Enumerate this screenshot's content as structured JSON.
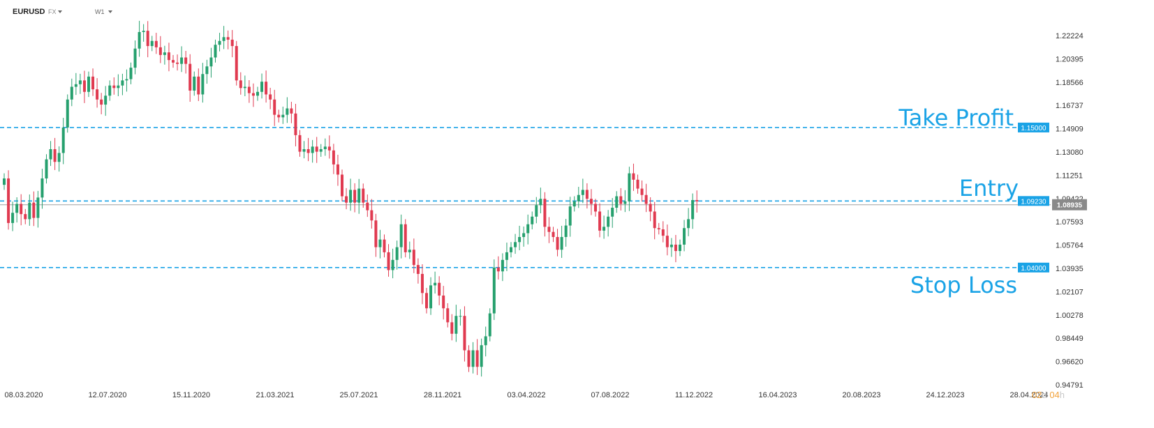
{
  "toolbar": {
    "symbol": "EURUSD",
    "market": "FX",
    "timeframe": "W1"
  },
  "countdown": {
    "days_value": "02",
    "days_unit": "d",
    "hours_value": "04",
    "hours_unit": "h"
  },
  "price_axis": {
    "labels": [
      "1.22224",
      "1.20395",
      "1.18566",
      "1.16737",
      "1.14909",
      "1.13080",
      "1.11251",
      "1.09422",
      "1.07593",
      "1.05764",
      "1.03935",
      "1.02107",
      "1.00278",
      "0.98449",
      "0.96620",
      "0.94791"
    ]
  },
  "time_axis": {
    "labels": [
      "08.03.2020",
      "12.07.2020",
      "15.11.2020",
      "21.03.2021",
      "25.07.2021",
      "28.11.2021",
      "03.04.2022",
      "07.08.2022",
      "11.12.2022",
      "16.04.2023",
      "20.08.2023",
      "24.12.2023",
      "28.04.2024"
    ]
  },
  "levels": [
    {
      "name": "Take Profit",
      "value": 1.15,
      "badge": "1.15000"
    },
    {
      "name": "Entry",
      "value": 1.0923,
      "badge": "1.09230"
    },
    {
      "name": "Stop Loss",
      "value": 1.04,
      "badge": "1.04000"
    }
  ],
  "current_price": {
    "value": 1.08935,
    "label": "1.08935"
  },
  "colors": {
    "bull": "#26a06e",
    "bear": "#e03a50",
    "level": "#1aa3e6",
    "current": "#9a9a9a"
  },
  "chart_data": {
    "type": "candlestick",
    "symbol": "EURUSD",
    "timeframe": "W1",
    "y_ticks": [
      1.22224,
      1.20395,
      1.18566,
      1.16737,
      1.14909,
      1.1308,
      1.11251,
      1.09422,
      1.07593,
      1.05764,
      1.03935,
      1.02107,
      1.00278,
      0.98449,
      0.9662,
      0.94791
    ],
    "x_tick_labels": [
      "08.03.2020",
      "12.07.2020",
      "15.11.2020",
      "21.03.2021",
      "25.07.2021",
      "28.11.2021",
      "03.04.2022",
      "07.08.2022",
      "11.12.2022",
      "16.04.2023",
      "20.08.2023",
      "24.12.2023",
      "28.04.2024"
    ],
    "horizontal_lines": [
      {
        "label": "Take Profit",
        "value": 1.15
      },
      {
        "label": "Entry",
        "value": 1.0923
      },
      {
        "label": "Stop Loss",
        "value": 1.04
      }
    ],
    "last_price": 1.08935,
    "closes": [
      1.11,
      1.075,
      1.083,
      1.09,
      1.082,
      1.078,
      1.091,
      1.079,
      1.095,
      1.11,
      1.125,
      1.133,
      1.123,
      1.13,
      1.15,
      1.172,
      1.182,
      1.184,
      1.187,
      1.178,
      1.19,
      1.18,
      1.172,
      1.168,
      1.175,
      1.183,
      1.181,
      1.183,
      1.187,
      1.188,
      1.197,
      1.212,
      1.225,
      1.226,
      1.214,
      1.218,
      1.213,
      1.207,
      1.209,
      1.203,
      1.201,
      1.2,
      1.205,
      1.2,
      1.179,
      1.19,
      1.176,
      1.192,
      1.198,
      1.205,
      1.215,
      1.218,
      1.221,
      1.219,
      1.214,
      1.187,
      1.181,
      1.182,
      1.177,
      1.175,
      1.178,
      1.186,
      1.176,
      1.172,
      1.16,
      1.158,
      1.16,
      1.165,
      1.161,
      1.144,
      1.131,
      1.133,
      1.13,
      1.135,
      1.131,
      1.133,
      1.135,
      1.132,
      1.121,
      1.113,
      1.096,
      1.091,
      1.101,
      1.091,
      1.102,
      1.091,
      1.085,
      1.077,
      1.056,
      1.062,
      1.052,
      1.038,
      1.046,
      1.056,
      1.074,
      1.052,
      1.054,
      1.042,
      1.035,
      1.02,
      1.008,
      1.026,
      1.028,
      1.018,
      1.008,
      0.997,
      0.988,
      1.002,
      1.002,
      0.975,
      0.962,
      0.975,
      0.962,
      0.979,
      0.986,
      1.004,
      1.04,
      1.037,
      1.046,
      1.052,
      1.056,
      1.06,
      1.064,
      1.067,
      1.074,
      1.08,
      1.089,
      1.094,
      1.072,
      1.068,
      1.064,
      1.054,
      1.064,
      1.073,
      1.088,
      1.092,
      1.097,
      1.101,
      1.094,
      1.09,
      1.084,
      1.069,
      1.072,
      1.08,
      1.087,
      1.096,
      1.09,
      1.092,
      1.114,
      1.109,
      1.102,
      1.097,
      1.09,
      1.084,
      1.071,
      1.07,
      1.065,
      1.056,
      1.058,
      1.053,
      1.058,
      1.071,
      1.078,
      1.093,
      1.092
    ]
  }
}
